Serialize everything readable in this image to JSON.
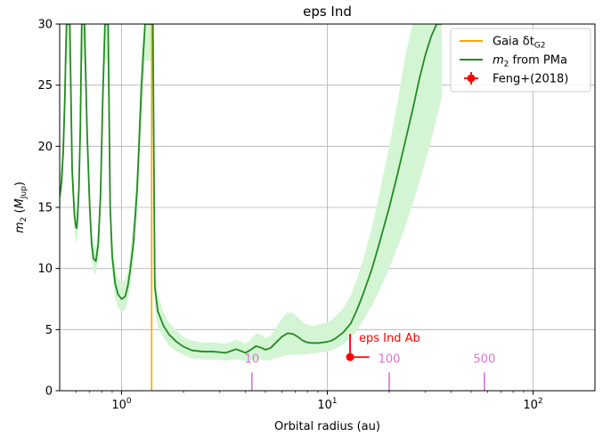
{
  "chart_data": {
    "type": "line",
    "title": "eps Ind",
    "xlabel": "Orbital radius (au)",
    "ylabel": "m2 (MJup)",
    "xscale": "log",
    "xlim": [
      0.5,
      200
    ],
    "ylim": [
      0,
      30
    ],
    "grid": true,
    "legend_position": "top-right",
    "x_ticks": [
      {
        "value": 1,
        "base": "10",
        "exp": "0"
      },
      {
        "value": 10,
        "base": "10",
        "exp": "1"
      },
      {
        "value": 100,
        "base": "10",
        "exp": "2"
      }
    ],
    "y_ticks": [
      {
        "value": 0,
        "label": "0"
      },
      {
        "value": 5,
        "label": "5"
      },
      {
        "value": 10,
        "label": "10"
      },
      {
        "value": 15,
        "label": "15"
      },
      {
        "value": 20,
        "label": "20"
      },
      {
        "value": 25,
        "label": "25"
      },
      {
        "value": 30,
        "label": "30"
      }
    ],
    "legend": [
      {
        "label": "Gaia δt",
        "sub": "G2",
        "color": "#ffa500",
        "marker": "line"
      },
      {
        "label": "m",
        "sub": "2",
        "suffix": " from PMa",
        "color": "#228b22",
        "marker": "line"
      },
      {
        "label": "Feng+(2018)",
        "color": "#ff0000",
        "marker": "errorbar"
      }
    ],
    "gaia_line": {
      "x": 1.4,
      "color": "#ffa500"
    },
    "series": [
      {
        "color": "#228b22",
        "band_color": "#d4f5d4",
        "x": [
          0.5,
          0.51,
          0.52,
          0.53,
          0.535,
          0.54,
          0.55,
          0.56,
          0.575,
          0.59,
          0.6,
          0.605,
          0.61,
          0.62,
          0.63,
          0.64,
          0.66,
          0.68,
          0.7,
          0.715,
          0.73,
          0.75,
          0.77,
          0.79,
          0.81,
          0.83,
          0.845,
          0.86,
          0.88,
          0.9,
          0.93,
          0.96,
          1.0,
          1.04,
          1.07,
          1.1,
          1.14,
          1.19,
          1.25,
          1.3,
          1.34,
          1.37,
          1.42,
          1.45,
          1.5,
          1.6,
          1.7,
          1.85,
          2.0,
          2.2,
          2.5,
          2.8,
          3.0,
          3.2,
          3.4,
          3.6,
          3.8,
          4.0,
          4.2,
          4.5,
          4.8,
          5.0,
          5.3,
          5.6,
          6.0,
          6.4,
          6.8,
          7.2,
          7.6,
          8.0,
          8.5,
          9.0,
          9.5,
          10.0,
          10.5,
          11.0,
          12.0,
          13.0,
          14.0,
          15.0,
          16.5,
          18.0,
          20.0,
          22.0,
          24.0,
          26.0,
          28.0,
          30.0,
          32.0,
          34.0,
          36.0
        ],
        "values": [
          15.9,
          17.0,
          19.5,
          24.0,
          27.5,
          30.0,
          30.0,
          30.0,
          18.0,
          14.3,
          13.4,
          13.3,
          14.0,
          16.5,
          21.5,
          30.0,
          30.0,
          21.0,
          15.0,
          12.0,
          10.8,
          10.6,
          12.0,
          16.0,
          24.0,
          30.0,
          30.0,
          30.0,
          15.0,
          11.0,
          8.8,
          7.9,
          7.5,
          7.7,
          8.5,
          9.8,
          12.0,
          16.5,
          25.0,
          30.0,
          30.0,
          30.0,
          30.0,
          8.5,
          6.5,
          5.3,
          4.6,
          4.0,
          3.6,
          3.3,
          3.2,
          3.2,
          3.15,
          3.1,
          3.25,
          3.4,
          3.25,
          3.1,
          3.3,
          3.65,
          3.5,
          3.35,
          3.5,
          3.9,
          4.4,
          4.7,
          4.65,
          4.4,
          4.1,
          3.95,
          3.9,
          3.9,
          3.95,
          4.0,
          4.1,
          4.3,
          4.8,
          5.5,
          6.7,
          8.0,
          10.0,
          12.2,
          15.0,
          17.8,
          20.5,
          23.0,
          25.5,
          27.5,
          29.0,
          30.0,
          30.0
        ],
        "band_lower": [
          14.5,
          15.5,
          17.5,
          21.5,
          24.5,
          27.0,
          27.0,
          27.0,
          16.5,
          13.0,
          12.2,
          12.1,
          12.7,
          15.0,
          19.5,
          27.0,
          27.0,
          19.0,
          13.5,
          10.8,
          9.7,
          9.5,
          10.8,
          14.5,
          22.0,
          27.0,
          27.0,
          27.0,
          13.0,
          9.5,
          7.6,
          6.8,
          6.5,
          6.6,
          7.3,
          8.5,
          10.5,
          14.5,
          22.0,
          27.0,
          27.0,
          27.0,
          27.0,
          6.8,
          5.2,
          4.3,
          3.7,
          3.2,
          2.9,
          2.65,
          2.55,
          2.55,
          2.5,
          2.45,
          2.5,
          2.55,
          2.5,
          2.4,
          2.45,
          2.55,
          2.5,
          2.45,
          2.5,
          2.65,
          2.8,
          2.9,
          2.95,
          2.95,
          2.95,
          3.0,
          3.05,
          3.1,
          3.15,
          3.2,
          3.3,
          3.45,
          3.8,
          4.3,
          5.0,
          5.8,
          7.0,
          8.3,
          10.0,
          11.8,
          13.5,
          15.3,
          17.0,
          18.8,
          20.5,
          22.3,
          24.0
        ],
        "band_upper": [
          17.5,
          18.8,
          21.5,
          26.5,
          30.0,
          30.0,
          30.0,
          30.0,
          19.8,
          15.8,
          14.8,
          14.7,
          15.5,
          18.2,
          23.8,
          30.0,
          30.0,
          23.2,
          16.6,
          13.3,
          12.0,
          11.8,
          13.3,
          17.8,
          26.5,
          30.0,
          30.0,
          30.0,
          17.0,
          12.5,
          10.0,
          9.2,
          8.8,
          9.0,
          9.8,
          11.2,
          13.8,
          18.8,
          28.0,
          30.0,
          30.0,
          30.0,
          30.0,
          10.2,
          7.9,
          6.4,
          5.6,
          4.9,
          4.4,
          4.1,
          3.95,
          3.95,
          3.9,
          3.85,
          4.0,
          4.2,
          4.05,
          3.85,
          4.15,
          4.7,
          4.55,
          4.3,
          4.5,
          5.1,
          5.9,
          6.4,
          6.35,
          6.0,
          5.6,
          5.4,
          5.3,
          5.4,
          5.5,
          5.6,
          5.8,
          6.1,
          6.8,
          7.8,
          9.2,
          10.8,
          13.4,
          16.3,
          20.0,
          23.7,
          27.5,
          30.0,
          30.0,
          30.0,
          30.0,
          30.0,
          30.0
        ]
      }
    ],
    "data_points": [
      {
        "label": "eps Ind Ab",
        "x": 12.9,
        "y": 2.75,
        "yerr_low": 0.0,
        "yerr_high": 1.9,
        "xerr_low": 0.0,
        "xerr_high": 3.1,
        "color": "#ff0000"
      }
    ],
    "annotations": [
      {
        "text": "10",
        "x": 4.3,
        "color": "#da70d6"
      },
      {
        "text": "100",
        "x": 20.0,
        "color": "#da70d6"
      },
      {
        "text": "500",
        "x": 58.0,
        "color": "#da70d6"
      }
    ],
    "annotation_tick_range": [
      0,
      1.5
    ]
  }
}
